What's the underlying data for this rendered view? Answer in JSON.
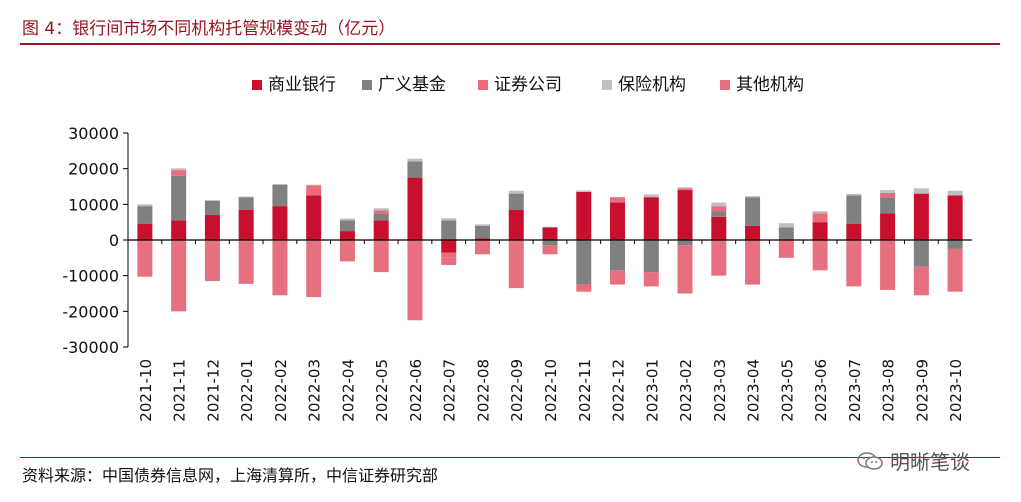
{
  "header": {
    "title": "图 4：银行间市场不同机构托管规模变动（亿元）"
  },
  "footer": {
    "source": "资料来源：中国债券信息网，上海清算所，中信证券研究部",
    "watermark_text": "明晰笔谈",
    "watermark_icon": "wechat-icon"
  },
  "chart_data": {
    "type": "bar",
    "stacked": true,
    "title": "",
    "xlabel": "",
    "ylabel": "",
    "ylim": [
      -30000,
      30000
    ],
    "yticks": [
      30000,
      20000,
      10000,
      0,
      -10000,
      -20000,
      -30000
    ],
    "legend_position": "top",
    "grid": false,
    "categories": [
      "2021-10",
      "2021-11",
      "2021-12",
      "2022-01",
      "2022-02",
      "2022-03",
      "2022-04",
      "2022-05",
      "2022-06",
      "2022-07",
      "2022-08",
      "2022-09",
      "2022-10",
      "2022-11",
      "2022-12",
      "2023-01",
      "2023-02",
      "2023-03",
      "2023-04",
      "2023-05",
      "2023-06",
      "2023-07",
      "2023-08",
      "2023-09",
      "2023-10"
    ],
    "series": [
      {
        "name": "商业银行",
        "color": "#c8102e",
        "values": [
          4500,
          5500,
          7000,
          8500,
          9500,
          12500,
          2500,
          5500,
          17500,
          -3500,
          500,
          8500,
          3500,
          13500,
          10500,
          12000,
          14000,
          6500,
          4000,
          0,
          5000,
          4500,
          7500,
          13000,
          12500
        ]
      },
      {
        "name": "广义基金",
        "color": "#808080",
        "values": [
          5000,
          12500,
          4000,
          3500,
          6000,
          0,
          3000,
          2000,
          4500,
          5500,
          3500,
          4500,
          -1500,
          -12500,
          -8500,
          -9000,
          -1500,
          1500,
          8000,
          3500,
          0,
          8000,
          4500,
          -7500,
          -2500
        ]
      },
      {
        "name": "证券公司",
        "color": "#ec6a7a",
        "values": [
          -800,
          1600,
          0,
          -300,
          0,
          2800,
          0,
          800,
          0,
          -1500,
          0,
          0,
          0,
          -1500,
          1500,
          0,
          500,
          1500,
          0,
          0,
          2500,
          0,
          1200,
          0,
          0
        ]
      },
      {
        "name": "保险机构",
        "color": "#bfbfbf",
        "values": [
          500,
          500,
          200,
          200,
          200,
          200,
          500,
          600,
          800,
          600,
          400,
          800,
          200,
          400,
          0,
          800,
          300,
          1000,
          300,
          1200,
          600,
          400,
          800,
          1500,
          1300
        ]
      },
      {
        "name": "其他机构",
        "color": "#e6707f",
        "values": [
          -9500,
          -20000,
          -11500,
          -12000,
          -15500,
          -16000,
          -6000,
          -9000,
          -22500,
          -2000,
          -4000,
          -13500,
          -2500,
          -500,
          -4000,
          -4000,
          -13500,
          -10000,
          -12500,
          -5000,
          -8500,
          -13000,
          -14000,
          -8000,
          -12000
        ]
      }
    ]
  }
}
